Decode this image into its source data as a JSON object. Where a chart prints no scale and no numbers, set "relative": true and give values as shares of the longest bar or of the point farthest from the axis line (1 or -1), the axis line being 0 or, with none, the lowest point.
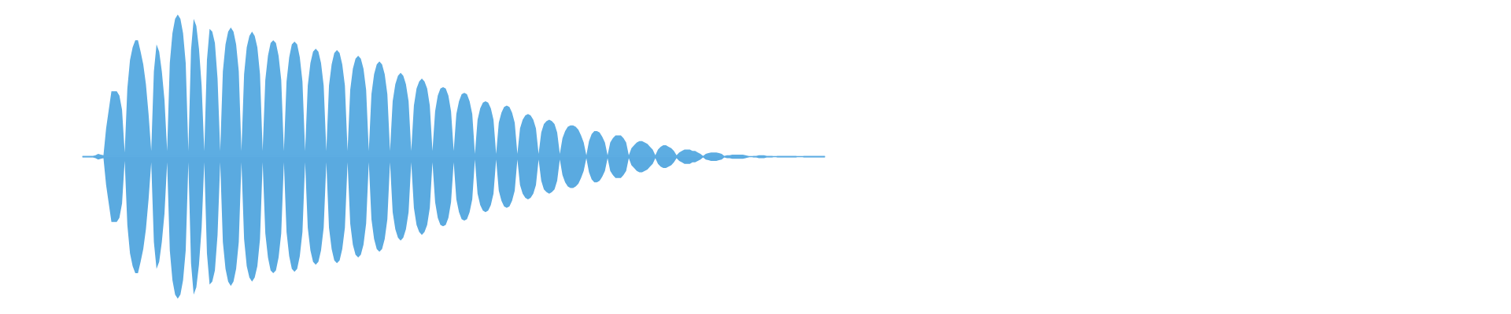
{
  "chart_data": {
    "type": "area",
    "relative": true,
    "categories": [
      null,
      null,
      null,
      null,
      null,
      null,
      null,
      null,
      null,
      null,
      null,
      null,
      null,
      null,
      null,
      null,
      null,
      null,
      null,
      null,
      null,
      null,
      null,
      null,
      null,
      null,
      null,
      null,
      null,
      null,
      null,
      null,
      null,
      null,
      null,
      null,
      null,
      null,
      null,
      null,
      null,
      null,
      null,
      null,
      null,
      null,
      null,
      null,
      null,
      null,
      null,
      null,
      null,
      null,
      null,
      null,
      null,
      null,
      null,
      null,
      null,
      null,
      null,
      null,
      null,
      null,
      null,
      null,
      null,
      null,
      null,
      null,
      null,
      null,
      null,
      null,
      null,
      null,
      null,
      null,
      null,
      null,
      null,
      null,
      null,
      null,
      null,
      null,
      null,
      null,
      null,
      null,
      null,
      null,
      null,
      null,
      null,
      null,
      null,
      null,
      null,
      null,
      null,
      null,
      null,
      null,
      null,
      null,
      null,
      null,
      null,
      null,
      null,
      null,
      null,
      null,
      null,
      null,
      null,
      null,
      null,
      null,
      null,
      null,
      null,
      null,
      null,
      null,
      null,
      null,
      null,
      null,
      null,
      null,
      null,
      null,
      null,
      null,
      null,
      null,
      null,
      null,
      null,
      null,
      null,
      null,
      null,
      null,
      null,
      null,
      null,
      null,
      null,
      null,
      null,
      null,
      null,
      null,
      null,
      null,
      null,
      null,
      null,
      null,
      null,
      null,
      null,
      null,
      null,
      null,
      null,
      null,
      null,
      null,
      null,
      null,
      null,
      null,
      null,
      null,
      null,
      null,
      null,
      null,
      null,
      null,
      null,
      null,
      null,
      null,
      null,
      null,
      null,
      null,
      null,
      null,
      null,
      null,
      null,
      null,
      null,
      null,
      null,
      null,
      null,
      null,
      null,
      null,
      null,
      null,
      null,
      null,
      null,
      null,
      null,
      null,
      null,
      null,
      null,
      null,
      null,
      null,
      null,
      null,
      null,
      null,
      null,
      null,
      null,
      null,
      null,
      null,
      null,
      null,
      null,
      null,
      null,
      null,
      null,
      null,
      null,
      null,
      null,
      null,
      null,
      null,
      null,
      null,
      null,
      null,
      null,
      null,
      null,
      null,
      null,
      null,
      null,
      null,
      null,
      null,
      null,
      null,
      null,
      null,
      null,
      null,
      null,
      null,
      null,
      null,
      null,
      null,
      null,
      null,
      null,
      null,
      null,
      null,
      null,
      null,
      null
    ],
    "series": [
      {
        "color": "#5dade2",
        "values": [
          0.005,
          0.005,
          0.005,
          0.005,
          0.005,
          0.01,
          0.02,
          0.015,
          0.01,
          0.2,
          0.33,
          0.46,
          0.46,
          0.46,
          0.43,
          0.33,
          0.03,
          0.48,
          0.68,
          0.77,
          0.82,
          0.82,
          0.74,
          0.65,
          0.51,
          0.3,
          0.04,
          0.6,
          0.79,
          0.74,
          0.6,
          0.4,
          0.04,
          0.66,
          0.87,
          0.97,
          1.0,
          0.97,
          0.87,
          0.66,
          0.04,
          0.75,
          0.97,
          0.92,
          0.76,
          0.5,
          0.04,
          0.68,
          0.9,
          0.88,
          0.8,
          0.55,
          0.04,
          0.6,
          0.79,
          0.88,
          0.91,
          0.88,
          0.79,
          0.6,
          0.04,
          0.58,
          0.77,
          0.85,
          0.88,
          0.85,
          0.77,
          0.58,
          0.04,
          0.54,
          0.71,
          0.8,
          0.82,
          0.8,
          0.71,
          0.54,
          0.04,
          0.53,
          0.7,
          0.79,
          0.81,
          0.79,
          0.7,
          0.53,
          0.04,
          0.5,
          0.66,
          0.74,
          0.76,
          0.74,
          0.66,
          0.5,
          0.04,
          0.5,
          0.65,
          0.73,
          0.75,
          0.73,
          0.65,
          0.5,
          0.04,
          0.47,
          0.62,
          0.69,
          0.71,
          0.69,
          0.62,
          0.47,
          0.04,
          0.44,
          0.58,
          0.65,
          0.67,
          0.65,
          0.58,
          0.44,
          0.04,
          0.39,
          0.51,
          0.57,
          0.59,
          0.57,
          0.51,
          0.39,
          0.04,
          0.36,
          0.48,
          0.53,
          0.55,
          0.53,
          0.48,
          0.36,
          0.04,
          0.32,
          0.43,
          0.48,
          0.49,
          0.48,
          0.43,
          0.32,
          0.04,
          0.3,
          0.39,
          0.44,
          0.45,
          0.44,
          0.39,
          0.3,
          0.02,
          0.26,
          0.34,
          0.38,
          0.39,
          0.38,
          0.34,
          0.26,
          0.02,
          0.24,
          0.31,
          0.35,
          0.36,
          0.35,
          0.31,
          0.24,
          0.02,
          0.2,
          0.26,
          0.29,
          0.3,
          0.29,
          0.26,
          0.2,
          0.02,
          0.17,
          0.23,
          0.25,
          0.26,
          0.25,
          0.23,
          0.17,
          0.02,
          0.13,
          0.18,
          0.21,
          0.22,
          0.22,
          0.21,
          0.19,
          0.15,
          0.1,
          0.01,
          0.11,
          0.16,
          0.18,
          0.18,
          0.17,
          0.14,
          0.1,
          0.01,
          0.1,
          0.13,
          0.15,
          0.15,
          0.15,
          0.13,
          0.1,
          0.01,
          0.06,
          0.08,
          0.1,
          0.11,
          0.11,
          0.1,
          0.09,
          0.07,
          0.05,
          0.01,
          0.05,
          0.07,
          0.08,
          0.08,
          0.07,
          0.06,
          0.04,
          0.01,
          0.03,
          0.04,
          0.05,
          0.05,
          0.05,
          0.04,
          0.04,
          0.03,
          0.02,
          0.005,
          0.02,
          0.025,
          0.03,
          0.03,
          0.03,
          0.025,
          0.02,
          0.005,
          0.01,
          0.01,
          0.015,
          0.015,
          0.015,
          0.015,
          0.015,
          0.01,
          0.005,
          0,
          0.005,
          0.005,
          0.01,
          0.01,
          0.01,
          0.005,
          0.005,
          0.005,
          0,
          0.005,
          0.005,
          0.005,
          0.005,
          0.005,
          0.005,
          0.005,
          0.005,
          0,
          0,
          0.005,
          0.005,
          0.005,
          0.005,
          0.005,
          0.005,
          0.005,
          0.005,
          0.005
        ]
      },
      {
        "color": "#5aaae0",
        "values": [
          -0.005,
          -0.005,
          -0.005,
          -0.005,
          -0.005,
          -0.01,
          -0.02,
          -0.015,
          -0.01,
          -0.2,
          -0.33,
          -0.46,
          -0.46,
          -0.46,
          -0.43,
          -0.33,
          -0.03,
          -0.48,
          -0.68,
          -0.77,
          -0.82,
          -0.82,
          -0.74,
          -0.65,
          -0.51,
          -0.3,
          -0.04,
          -0.6,
          -0.79,
          -0.74,
          -0.6,
          -0.4,
          -0.04,
          -0.66,
          -0.87,
          -0.97,
          -1.0,
          -0.97,
          -0.87,
          -0.66,
          -0.04,
          -0.75,
          -0.97,
          -0.92,
          -0.76,
          -0.5,
          -0.04,
          -0.68,
          -0.9,
          -0.88,
          -0.8,
          -0.55,
          -0.04,
          -0.6,
          -0.79,
          -0.88,
          -0.91,
          -0.88,
          -0.79,
          -0.6,
          -0.04,
          -0.58,
          -0.77,
          -0.85,
          -0.88,
          -0.85,
          -0.77,
          -0.58,
          -0.04,
          -0.54,
          -0.71,
          -0.8,
          -0.82,
          -0.8,
          -0.71,
          -0.54,
          -0.04,
          -0.53,
          -0.7,
          -0.79,
          -0.81,
          -0.79,
          -0.7,
          -0.53,
          -0.04,
          -0.5,
          -0.66,
          -0.74,
          -0.76,
          -0.74,
          -0.66,
          -0.5,
          -0.04,
          -0.5,
          -0.65,
          -0.73,
          -0.75,
          -0.73,
          -0.65,
          -0.5,
          -0.04,
          -0.47,
          -0.62,
          -0.69,
          -0.71,
          -0.69,
          -0.62,
          -0.47,
          -0.04,
          -0.44,
          -0.58,
          -0.65,
          -0.67,
          -0.65,
          -0.58,
          -0.44,
          -0.04,
          -0.39,
          -0.51,
          -0.57,
          -0.59,
          -0.57,
          -0.51,
          -0.39,
          -0.04,
          -0.36,
          -0.48,
          -0.53,
          -0.55,
          -0.53,
          -0.48,
          -0.36,
          -0.04,
          -0.32,
          -0.43,
          -0.48,
          -0.49,
          -0.48,
          -0.43,
          -0.32,
          -0.04,
          -0.3,
          -0.39,
          -0.44,
          -0.45,
          -0.44,
          -0.39,
          -0.3,
          -0.02,
          -0.26,
          -0.34,
          -0.38,
          -0.39,
          -0.38,
          -0.34,
          -0.26,
          -0.02,
          -0.24,
          -0.31,
          -0.35,
          -0.36,
          -0.35,
          -0.31,
          -0.24,
          -0.02,
          -0.2,
          -0.26,
          -0.29,
          -0.3,
          -0.29,
          -0.26,
          -0.2,
          -0.02,
          -0.17,
          -0.23,
          -0.25,
          -0.26,
          -0.25,
          -0.23,
          -0.17,
          -0.02,
          -0.13,
          -0.18,
          -0.21,
          -0.22,
          -0.22,
          -0.21,
          -0.19,
          -0.15,
          -0.1,
          -0.01,
          -0.11,
          -0.16,
          -0.18,
          -0.18,
          -0.17,
          -0.14,
          -0.1,
          -0.01,
          -0.1,
          -0.13,
          -0.15,
          -0.15,
          -0.15,
          -0.13,
          -0.1,
          -0.01,
          -0.06,
          -0.08,
          -0.1,
          -0.11,
          -0.11,
          -0.1,
          -0.09,
          -0.07,
          -0.05,
          -0.01,
          -0.05,
          -0.07,
          -0.08,
          -0.08,
          -0.07,
          -0.06,
          -0.04,
          -0.01,
          -0.03,
          -0.04,
          -0.05,
          -0.05,
          -0.05,
          -0.04,
          -0.04,
          -0.03,
          -0.02,
          -0.005,
          -0.02,
          -0.025,
          -0.03,
          -0.03,
          -0.03,
          -0.025,
          -0.02,
          -0.005,
          -0.01,
          -0.01,
          -0.015,
          -0.015,
          -0.015,
          -0.015,
          -0.015,
          -0.01,
          -0.005,
          0,
          -0.005,
          -0.005,
          -0.01,
          -0.01,
          -0.01,
          -0.005,
          -0.005,
          -0.005,
          0,
          -0.005,
          -0.005,
          -0.005,
          -0.005,
          -0.005,
          -0.005,
          -0.005,
          -0.005,
          0,
          0,
          -0.005,
          -0.005,
          -0.005,
          -0.005,
          -0.005,
          -0.005,
          -0.005,
          -0.005,
          -0.005
        ]
      }
    ]
  }
}
